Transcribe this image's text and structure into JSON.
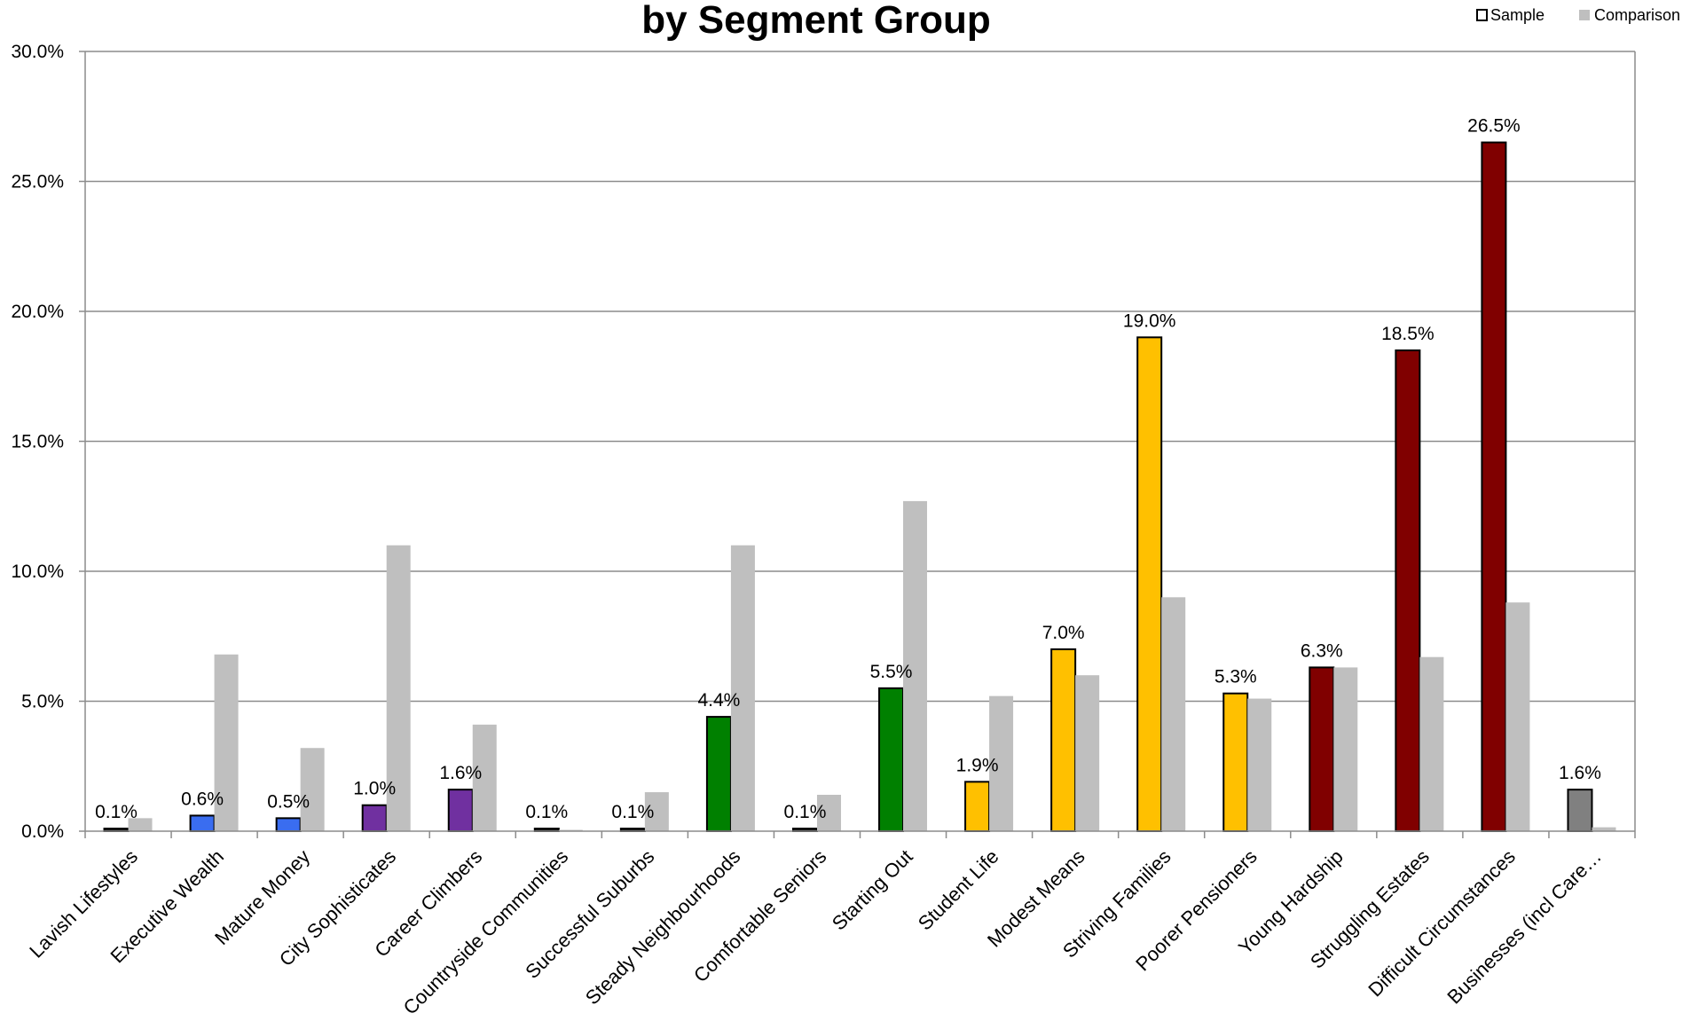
{
  "chart_data": {
    "type": "bar",
    "title": "by Segment Group",
    "xlabel": "",
    "ylabel": "",
    "ylim": [
      0,
      30
    ],
    "yticks": [
      "0.0%",
      "5.0%",
      "10.0%",
      "15.0%",
      "20.0%",
      "25.0%",
      "30.0%"
    ],
    "grid": true,
    "legend_position": "top-right",
    "categories": [
      "Lavish Lifestyles",
      "Executive Wealth",
      "Mature Money",
      "City Sophisticates",
      "Career Climbers",
      "Countryside Communities",
      "Successful Suburbs",
      "Steady Neighbourhoods",
      "Comfortable Seniors",
      "Starting Out",
      "Student Life",
      "Modest Means",
      "Striving Families",
      "Poorer Pensioners",
      "Young Hardship",
      "Struggling Estates",
      "Difficult Circumstances",
      "Businesses (incl Care…"
    ],
    "series": [
      {
        "name": "Sample",
        "values": [
          0.1,
          0.6,
          0.5,
          1.0,
          1.6,
          0.1,
          0.1,
          4.4,
          0.1,
          5.5,
          1.9,
          7.0,
          19.0,
          5.3,
          6.3,
          18.5,
          26.5,
          1.6
        ],
        "labels": [
          "0.1%",
          "0.6%",
          "0.5%",
          "1.0%",
          "1.6%",
          "0.1%",
          "0.1%",
          "4.4%",
          "0.1%",
          "5.5%",
          "1.9%",
          "7.0%",
          "19.0%",
          "5.3%",
          "6.3%",
          "18.5%",
          "26.5%",
          "1.6%"
        ],
        "colors": [
          "#1f1f1f",
          "#3a6df0",
          "#3a6df0",
          "#7030a0",
          "#7030a0",
          "#1f1f1f",
          "#1f1f1f",
          "#008000",
          "#1f1f1f",
          "#008000",
          "#ffc000",
          "#ffc000",
          "#ffc000",
          "#ffc000",
          "#800000",
          "#800000",
          "#800000",
          "#808080"
        ]
      },
      {
        "name": "Comparison",
        "values": [
          0.5,
          6.8,
          3.2,
          11.0,
          4.1,
          0.05,
          1.5,
          11.0,
          1.4,
          12.7,
          5.2,
          6.0,
          9.0,
          5.1,
          6.3,
          6.7,
          8.8,
          0.15
        ],
        "color": "#bfbfbf"
      }
    ],
    "legend": [
      {
        "name": "Sample",
        "swatch": "outlined"
      },
      {
        "name": "Comparison",
        "color": "#bfbfbf"
      }
    ]
  }
}
